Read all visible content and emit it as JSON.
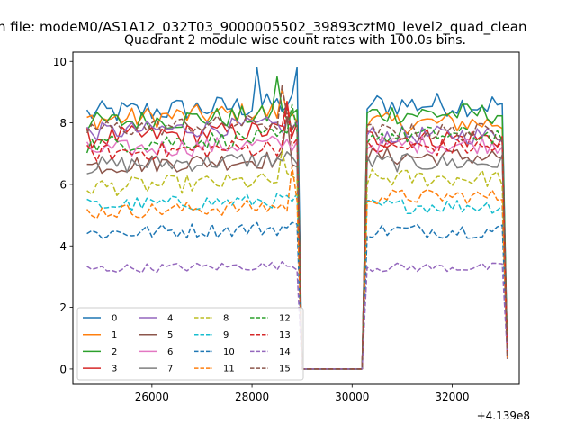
{
  "chart_data": {
    "type": "line",
    "suptitle": "n file: modeM0/AS1A12_032T03_9000005502_39893cztM0_level2_quad_clean",
    "title": "Quadrant 2 module wise count rates with 100.0s bins.",
    "xlabel": "",
    "ylabel": "",
    "offset_label": "+4.139e8",
    "xlim": [
      24420,
      33340
    ],
    "ylim": [
      -0.5,
      10.3
    ],
    "xticks": [
      26000,
      28000,
      30000,
      32000
    ],
    "xtick_labels": [
      "26000",
      "28000",
      "30000",
      "32000"
    ],
    "yticks": [
      0,
      2,
      4,
      6,
      8,
      10
    ],
    "ytick_labels": [
      "0",
      "2",
      "4",
      "6",
      "8",
      "10"
    ],
    "grid": false,
    "legend_position": "lower-left",
    "legend_columns": 4,
    "time_range": {
      "start": 24700,
      "end": 33100,
      "bin": 100,
      "gap_start": 29000,
      "gap_end": 30200
    },
    "series": [
      {
        "name": "0",
        "color": "#1f77b4",
        "dash": "solid",
        "level_a": 8.3,
        "level_b": 8.6,
        "noise": 0.4,
        "spikes": [
          [
            28100,
            9.8
          ],
          [
            28900,
            9.8
          ]
        ]
      },
      {
        "name": "1",
        "color": "#ff7f0e",
        "dash": "solid",
        "level_a": 8.1,
        "level_b": 8.0,
        "noise": 0.35,
        "spikes": [
          [
            28600,
            9.1
          ]
        ]
      },
      {
        "name": "2",
        "color": "#2ca02c",
        "dash": "solid",
        "level_a": 8.0,
        "level_b": 8.3,
        "noise": 0.35,
        "spikes": [
          [
            28500,
            9.5
          ]
        ]
      },
      {
        "name": "3",
        "color": "#d62728",
        "dash": "solid",
        "level_a": 7.5,
        "level_b": 7.5,
        "noise": 0.35,
        "spikes": [
          [
            28700,
            8.7
          ]
        ]
      },
      {
        "name": "4",
        "color": "#9467bd",
        "dash": "solid",
        "level_a": 7.7,
        "level_b": 7.6,
        "noise": 0.3,
        "spikes": []
      },
      {
        "name": "5",
        "color": "#8c564b",
        "dash": "solid",
        "level_a": 6.6,
        "level_b": 6.9,
        "noise": 0.3,
        "spikes": [
          [
            28700,
            8.2
          ]
        ]
      },
      {
        "name": "6",
        "color": "#e377c2",
        "dash": "solid",
        "level_a": 7.1,
        "level_b": 7.3,
        "noise": 0.3,
        "spikes": []
      },
      {
        "name": "7",
        "color": "#7f7f7f",
        "dash": "solid",
        "level_a": 6.6,
        "level_b": 6.7,
        "noise": 0.3,
        "spikes": []
      },
      {
        "name": "8",
        "color": "#bcbd22",
        "dash": "dashed",
        "level_a": 5.9,
        "level_b": 6.2,
        "noise": 0.3,
        "spikes": [
          [
            28600,
            7.1
          ]
        ]
      },
      {
        "name": "9",
        "color": "#17becf",
        "dash": "dashed",
        "level_a": 5.3,
        "level_b": 5.3,
        "noise": 0.25,
        "spikes": []
      },
      {
        "name": "10",
        "color": "#1f77b4",
        "dash": "dashed",
        "level_a": 4.4,
        "level_b": 4.5,
        "noise": 0.25,
        "spikes": []
      },
      {
        "name": "11",
        "color": "#ff7f0e",
        "dash": "dashed",
        "level_a": 5.1,
        "level_b": 5.6,
        "noise": 0.25,
        "spikes": [
          [
            28800,
            6.6
          ]
        ]
      },
      {
        "name": "12",
        "color": "#2ca02c",
        "dash": "dashed",
        "level_a": 7.3,
        "level_b": 7.6,
        "noise": 0.3,
        "spikes": [
          [
            28800,
            8.6
          ]
        ]
      },
      {
        "name": "13",
        "color": "#d62728",
        "dash": "dashed",
        "level_a": 7.0,
        "level_b": 7.2,
        "noise": 0.3,
        "spikes": [
          [
            28700,
            8.6
          ]
        ]
      },
      {
        "name": "14",
        "color": "#9467bd",
        "dash": "dashed",
        "level_a": 3.25,
        "level_b": 3.3,
        "noise": 0.15,
        "spikes": []
      },
      {
        "name": "15",
        "color": "#8c564b",
        "dash": "dashed",
        "level_a": 7.8,
        "level_b": 7.7,
        "noise": 0.3,
        "spikes": [
          [
            28600,
            9.2
          ]
        ]
      }
    ]
  }
}
